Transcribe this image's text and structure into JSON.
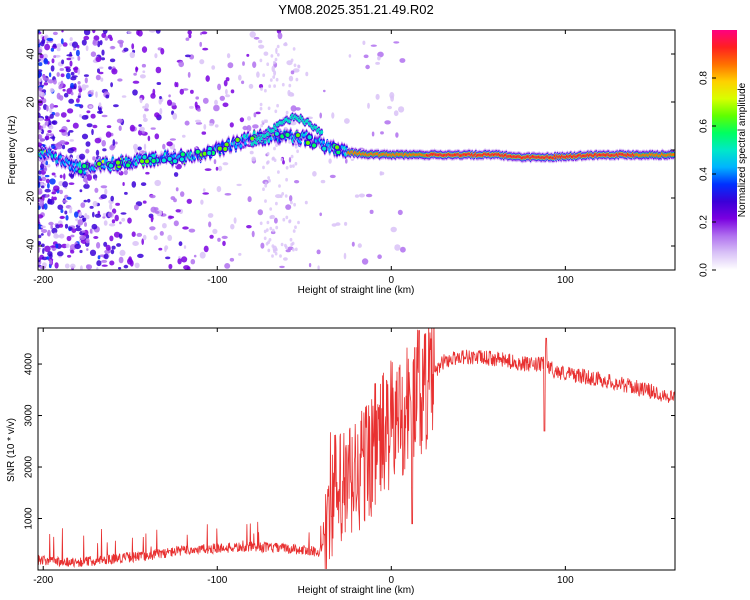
{
  "title": "YM08.2025.351.21.49.R02",
  "colors": {
    "snr_line": "#e83030",
    "axis": "#000000",
    "colormap": [
      "#ffffff",
      "#d9c2f7",
      "#b070ef",
      "#7a00e0",
      "#3a00d8",
      "#0030ff",
      "#00b4ff",
      "#00e8c8",
      "#00ff60",
      "#60ff00",
      "#d8ff00",
      "#ffd000",
      "#ff7000",
      "#ff2020",
      "#ff0080"
    ]
  },
  "chart_data": [
    {
      "type": "heatmap",
      "name": "spectrogram",
      "xlabel": "Height of straight line (km)",
      "ylabel": "Frequency (Hz)",
      "xlim": [
        -203,
        163
      ],
      "ylim": [
        -50,
        50
      ],
      "xticks": [
        -200,
        -100,
        0,
        100
      ],
      "yticks": [
        -40,
        -20,
        0,
        20,
        40
      ],
      "colorbar": {
        "label": "Normalized spectral amplitude",
        "ticks": [
          "0.0",
          "0.2",
          "0.4",
          "0.6",
          "0.8"
        ],
        "range": [
          0,
          1
        ]
      },
      "ridge": [
        {
          "x": -203,
          "f": 0
        },
        {
          "x": -180,
          "f": -8
        },
        {
          "x": -150,
          "f": -5
        },
        {
          "x": -120,
          "f": -3
        },
        {
          "x": -100,
          "f": 0
        },
        {
          "x": -80,
          "f": 5
        },
        {
          "x": -60,
          "f": 6
        },
        {
          "x": -50,
          "f": 5
        },
        {
          "x": -40,
          "f": 2
        },
        {
          "x": -25,
          "f": -1
        },
        {
          "x": -10,
          "f": -2
        },
        {
          "x": 0,
          "f": -2
        },
        {
          "x": 20,
          "f": -2
        },
        {
          "x": 60,
          "f": -2
        },
        {
          "x": 75,
          "f": -3
        },
        {
          "x": 90,
          "f": -3
        },
        {
          "x": 120,
          "f": -2
        },
        {
          "x": 163,
          "f": -2
        }
      ],
      "upper_branch": [
        {
          "x": -80,
          "f": 2
        },
        {
          "x": -70,
          "f": 8
        },
        {
          "x": -55,
          "f": 14
        },
        {
          "x": -45,
          "f": 10
        },
        {
          "x": -40,
          "f": 7
        }
      ]
    },
    {
      "type": "line",
      "name": "snr",
      "xlabel": "Height of straight line (km)",
      "ylabel": "SNR (10 * v/v)",
      "xlim": [
        -203,
        163
      ],
      "ylim": [
        0,
        4700
      ],
      "xticks": [
        -200,
        -100,
        0,
        100
      ],
      "yticks": [
        1000,
        2000,
        3000,
        4000
      ],
      "envelope": [
        {
          "x": -203,
          "y": 180
        },
        {
          "x": -180,
          "y": 150
        },
        {
          "x": -160,
          "y": 220
        },
        {
          "x": -140,
          "y": 280
        },
        {
          "x": -120,
          "y": 380
        },
        {
          "x": -100,
          "y": 420
        },
        {
          "x": -80,
          "y": 450
        },
        {
          "x": -60,
          "y": 420
        },
        {
          "x": -40,
          "y": 350
        },
        {
          "x": -35,
          "y": 1500
        },
        {
          "x": -30,
          "y": 1400
        },
        {
          "x": -20,
          "y": 1800
        },
        {
          "x": -10,
          "y": 2400
        },
        {
          "x": 0,
          "y": 2800
        },
        {
          "x": 10,
          "y": 3200
        },
        {
          "x": 20,
          "y": 3600
        },
        {
          "x": 30,
          "y": 4050
        },
        {
          "x": 40,
          "y": 4150
        },
        {
          "x": 60,
          "y": 4100
        },
        {
          "x": 80,
          "y": 3980
        },
        {
          "x": 88,
          "y": 4000
        },
        {
          "x": 95,
          "y": 3850
        },
        {
          "x": 120,
          "y": 3700
        },
        {
          "x": 140,
          "y": 3550
        },
        {
          "x": 163,
          "y": 3350
        }
      ],
      "spikes": [
        {
          "x": 12,
          "y": 900
        },
        {
          "x": 16,
          "y": 4650
        },
        {
          "x": 88,
          "y": 2700
        },
        {
          "x": 89,
          "y": 4500
        }
      ]
    }
  ]
}
